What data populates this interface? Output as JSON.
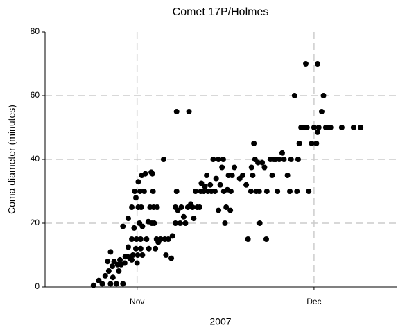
{
  "chart_data": {
    "type": "scatter",
    "title": "Comet 17P/Holmes",
    "xlabel": "2007",
    "ylabel": "Coma diameter (minutes)",
    "x": [
      -7.4,
      -6.5,
      -5.9,
      -5.4,
      -5,
      -4.8,
      -4.5,
      -4.5,
      -4.2,
      -4.1,
      -3.9,
      -3.5,
      -3.3,
      -3.1,
      -2.9,
      -2.7,
      -2.4,
      -2.4,
      -2.1,
      -2,
      -1.6,
      -1.5,
      -1.5,
      -1.2,
      -0.9,
      -0.9,
      -0.9,
      -0.7,
      -0.5,
      -0.4,
      -0.2,
      -0.2,
      -0.1,
      0,
      0.1,
      0.2,
      0.2,
      0.4,
      0.5,
      0.6,
      0.6,
      0.7,
      0.8,
      0.9,
      0.9,
      1.2,
      1.4,
      1.6,
      1.9,
      2,
      2.2,
      2.4,
      2.5,
      2.6,
      2.7,
      2.8,
      2.9,
      3.1,
      3.3,
      3.4,
      3.6,
      4,
      4.5,
      4.7,
      4.9,
      5.3,
      5.8,
      6,
      6.5,
      6.5,
      6.7,
      6.7,
      6.9,
      7.3,
      7.5,
      7.9,
      8.2,
      8.6,
      8.8,
      9.1,
      9.4,
      9.6,
      9.9,
      10.2,
      10.6,
      10.8,
      10.9,
      11.3,
      11.5,
      11.8,
      12,
      12.4,
      12.6,
      12.9,
      13.2,
      13.4,
      13.8,
      13.8,
      14.1,
      14.4,
      14.6,
      14.7,
      14.9,
      15.1,
      15.3,
      15.5,
      15.8,
      15.9,
      16.1,
      16.5,
      17.4,
      17.9,
      18.5,
      18.8,
      19.3,
      19.4,
      19.6,
      19.8,
      20,
      20.2,
      20.5,
      20.7,
      20.8,
      21.2,
      21.6,
      21.9,
      22,
      22.6,
      22.9,
      23.2,
      23.5,
      23.8,
      24.1,
      24.6,
      24.9,
      25.5,
      25.9,
      26.1,
      26.7,
      27.1,
      27.3,
      27.5,
      27.8,
      28.2,
      28.6,
      28.8,
      29.1,
      29.6,
      30,
      30.4,
      30.6,
      30.6,
      30.8,
      31.3,
      31.6,
      32,
      32.6,
      32.8,
      34.7,
      36.7,
      37.9
    ],
    "values": [
      0.5,
      2,
      1,
      3.5,
      8,
      5,
      11,
      1,
      6.5,
      3,
      8,
      1,
      7,
      5,
      8.5,
      7,
      1,
      19,
      7.5,
      9.5,
      9.5,
      12.5,
      21.5,
      9,
      25,
      15,
      8.5,
      10,
      18.5,
      30,
      28,
      12,
      15,
      7.5,
      10,
      33,
      25,
      20,
      30,
      15,
      12,
      25,
      35,
      19,
      10,
      30,
      35.5,
      15,
      20.5,
      12,
      25,
      36,
      20,
      35.5,
      30,
      25,
      20,
      12,
      15,
      25,
      14,
      15,
      40,
      15,
      10,
      15,
      9,
      16,
      25,
      20,
      55,
      30,
      24,
      20,
      25,
      22,
      20,
      25,
      55,
      26,
      25,
      21.5,
      30,
      25,
      25,
      30,
      32.5,
      30,
      31.5,
      35,
      30,
      32,
      30,
      40,
      30,
      34,
      40,
      24,
      32,
      37.5,
      40,
      30,
      20,
      25,
      30.5,
      35,
      24,
      30,
      35,
      37.5,
      34,
      35,
      32,
      15,
      30,
      37.5,
      35,
      45,
      40,
      30,
      39,
      30,
      20,
      39,
      37.5,
      15,
      30,
      40,
      35,
      40,
      40,
      30,
      40,
      42,
      40,
      35,
      30,
      40,
      60,
      30,
      40,
      45,
      50,
      50,
      70,
      50,
      30,
      45,
      50,
      45,
      70,
      48.5,
      50,
      55,
      60,
      50,
      50,
      50,
      50,
      50,
      50
    ],
    "color": "#000000",
    "xlim": [
      -15.6,
      44
    ],
    "xticks": [
      {
        "value": 0,
        "label": "Nov"
      },
      {
        "value": 30,
        "label": "Dec"
      }
    ],
    "ylim": [
      0,
      80
    ],
    "yticks": [
      0,
      20,
      40,
      60,
      80
    ],
    "grid": true
  }
}
